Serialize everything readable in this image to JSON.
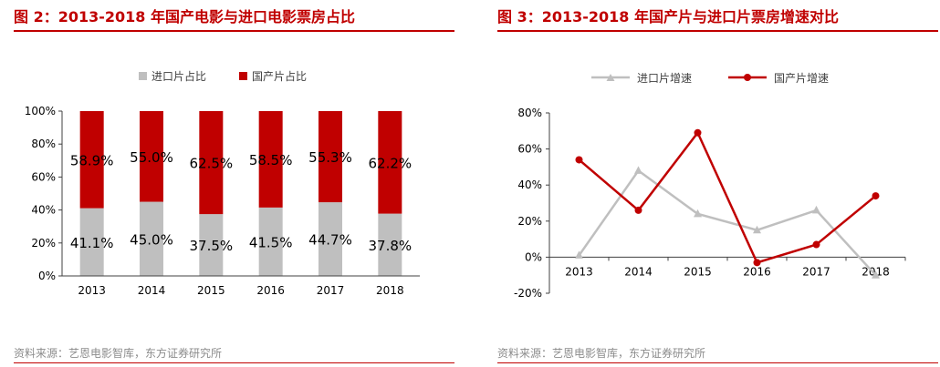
{
  "left": {
    "title": "图 2：2013-2018 年国产电影与进口电影票房占比",
    "source": "资料来源：艺恩电影智库，东方证券研究所"
  },
  "right": {
    "title": "图 3：2013-2018 年国产片与进口片票房增速对比",
    "source": "资料来源：艺恩电影智库，东方证券研究所"
  },
  "chart_data": [
    {
      "type": "bar",
      "stacked": true,
      "categories": [
        "2013",
        "2014",
        "2015",
        "2016",
        "2017",
        "2018"
      ],
      "series": [
        {
          "name": "进口片占比",
          "values": [
            41.1,
            45.0,
            37.5,
            41.5,
            44.7,
            37.8
          ],
          "labels": [
            "41.1%",
            "45.0%",
            "37.5%",
            "41.5%",
            "44.7%",
            "37.8%"
          ],
          "color": "#bfbfbf"
        },
        {
          "name": "国产片占比",
          "values": [
            58.9,
            55.0,
            62.5,
            58.5,
            55.3,
            62.2
          ],
          "labels": [
            "58.9%",
            "55.0%",
            "62.5%",
            "58.5%",
            "55.3%",
            "62.2%"
          ],
          "color": "#c00000"
        }
      ],
      "yticks": [
        "0%",
        "20%",
        "40%",
        "60%",
        "80%",
        "100%"
      ],
      "ylim": [
        0,
        100
      ],
      "legend": "top-center",
      "grid": false
    },
    {
      "type": "line",
      "categories": [
        "2013",
        "2014",
        "2015",
        "2016",
        "2017",
        "2018"
      ],
      "series": [
        {
          "name": "进口片增速",
          "values": [
            1,
            48,
            24,
            15,
            26,
            -10
          ],
          "color": "#bfbfbf",
          "marker": "triangle"
        },
        {
          "name": "国产片增速",
          "values": [
            54,
            26,
            69,
            -3,
            7,
            34
          ],
          "color": "#c00000",
          "marker": "circle"
        }
      ],
      "yticks": [
        "-20%",
        "0%",
        "20%",
        "40%",
        "60%",
        "80%"
      ],
      "ylim": [
        -20,
        80
      ],
      "legend": "top-center",
      "grid": false
    }
  ]
}
